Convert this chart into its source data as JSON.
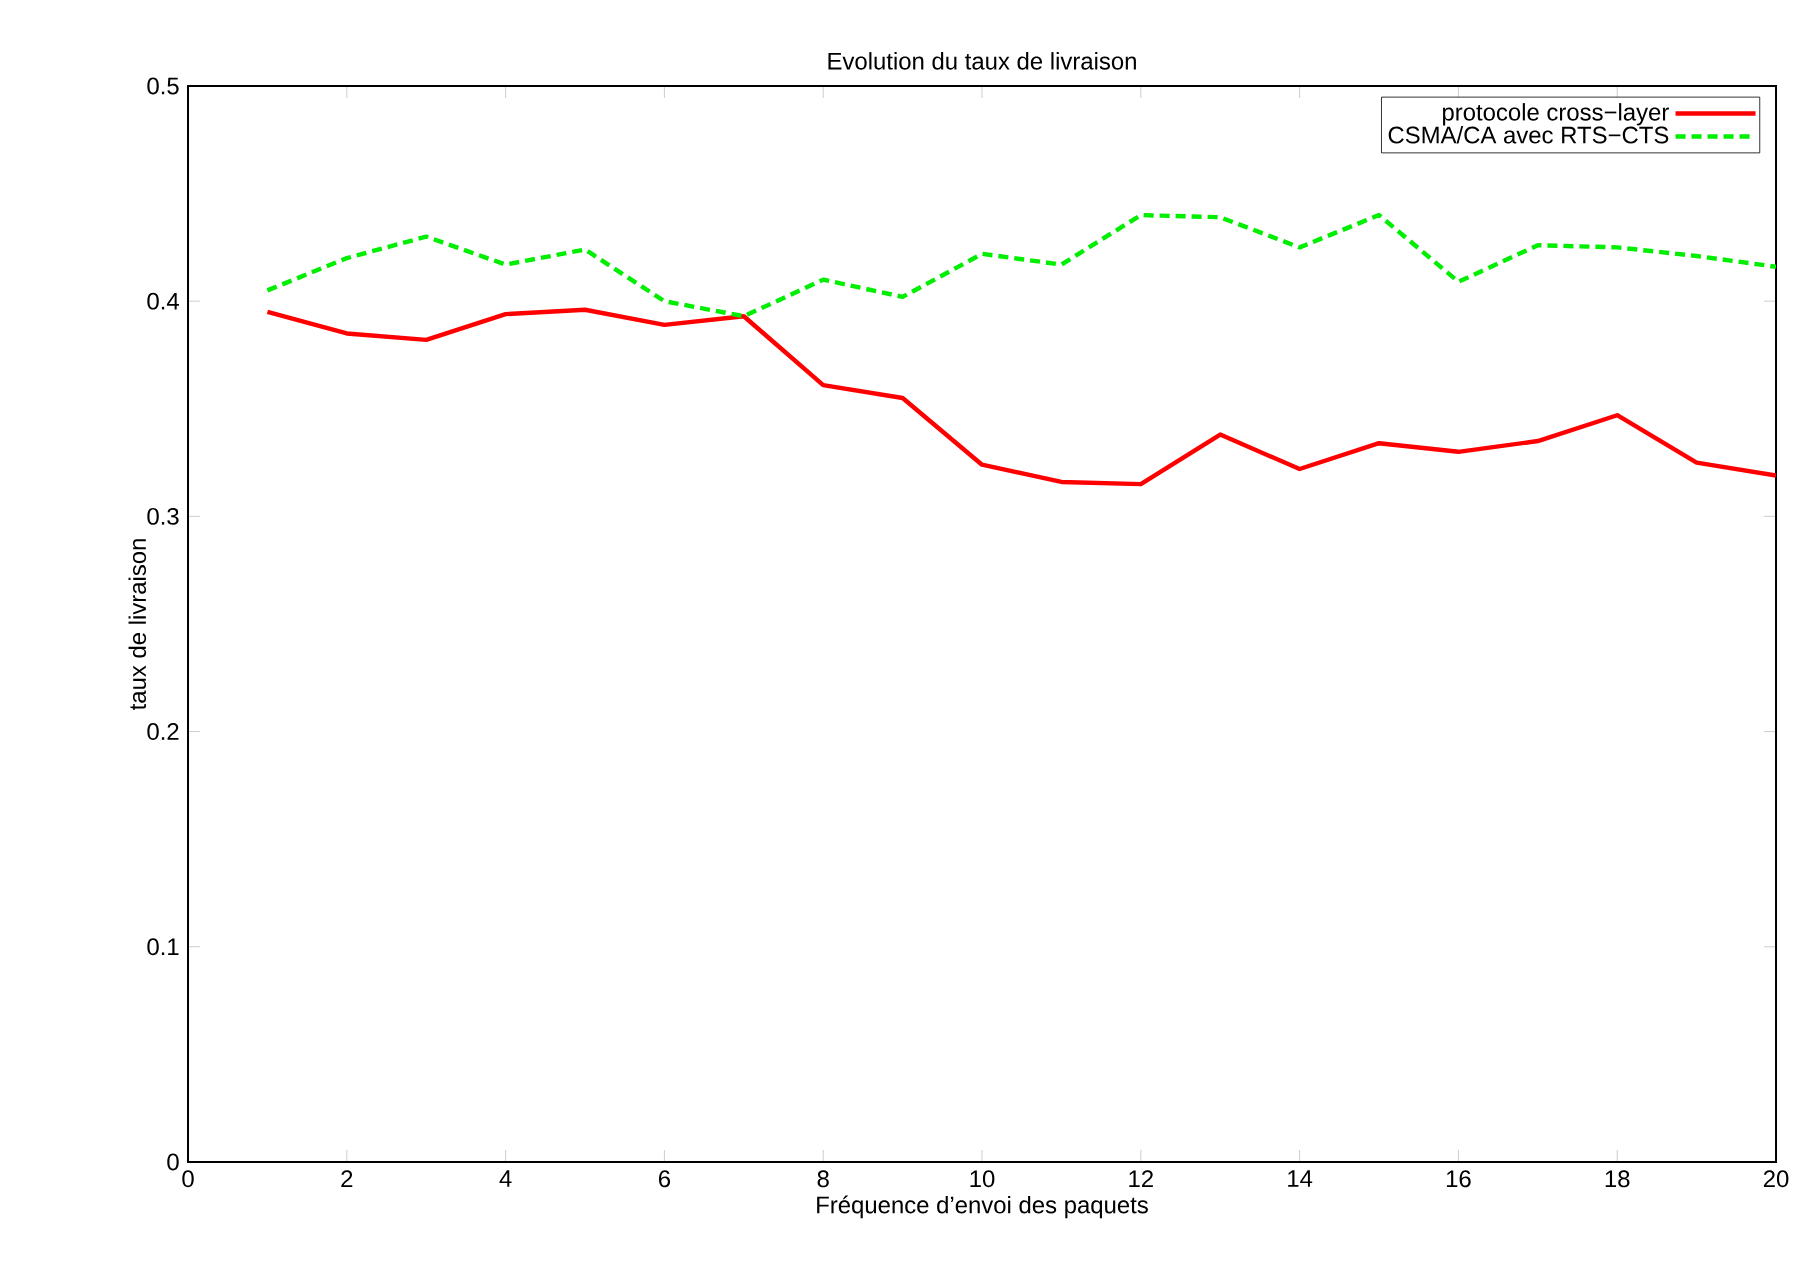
{
  "chart_data": {
    "type": "line",
    "title": "Evolution du taux de livraison",
    "xlabel": "Fréquence d’envoi des paquets",
    "ylabel": "taux de livraison",
    "x": [
      1,
      2,
      3,
      4,
      5,
      6,
      7,
      8,
      9,
      10,
      11,
      12,
      13,
      14,
      15,
      16,
      17,
      18,
      19,
      20
    ],
    "series": [
      {
        "name": "protocole cross−layer",
        "color": "#ff0000",
        "line_style": "solid",
        "values": [
          0.395,
          0.385,
          0.382,
          0.394,
          0.396,
          0.389,
          0.393,
          0.361,
          0.355,
          0.324,
          0.316,
          0.315,
          0.338,
          0.322,
          0.334,
          0.33,
          0.335,
          0.347,
          0.325,
          0.319
        ]
      },
      {
        "name": "CSMA/CA avec RTS−CTS",
        "color": "#00ee00",
        "line_style": "dashed",
        "values": [
          0.405,
          0.42,
          0.43,
          0.417,
          0.424,
          0.4,
          0.393,
          0.41,
          0.402,
          0.422,
          0.417,
          0.44,
          0.439,
          0.425,
          0.44,
          0.409,
          0.426,
          0.425,
          0.421,
          0.416
        ]
      }
    ],
    "xlim": [
      0,
      20
    ],
    "ylim": [
      0,
      0.5
    ],
    "xticks": [
      0,
      2,
      4,
      6,
      8,
      10,
      12,
      14,
      16,
      18,
      20
    ],
    "yticks": [
      0,
      0.1,
      0.2,
      0.3,
      0.4,
      0.5
    ],
    "legend": "top right",
    "grid": false,
    "marker": "none"
  }
}
